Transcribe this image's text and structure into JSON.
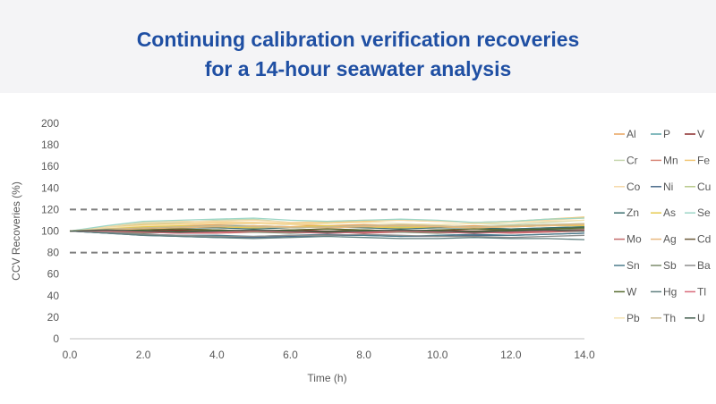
{
  "title_line1": "Continuing calibration verification recoveries",
  "title_line2": "for a 14-hour seawater analysis",
  "chart_data": {
    "type": "line",
    "title": "Continuing calibration verification recoveries for a 14-hour seawater analysis",
    "xlabel": "Time (h)",
    "ylabel": "CCV Recoveries (%)",
    "xlim": [
      0,
      14
    ],
    "ylim": [
      0,
      200
    ],
    "xticks": [
      "0.0",
      "2.0",
      "4.0",
      "6.0",
      "8.0",
      "10.0",
      "12.0",
      "14.0"
    ],
    "yticks": [
      "0",
      "20",
      "40",
      "60",
      "80",
      "100",
      "120",
      "140",
      "160",
      "180",
      "200"
    ],
    "grid": false,
    "legend_position": "right",
    "x": [
      0,
      1,
      2,
      3,
      4,
      5,
      6,
      7,
      8,
      9,
      10,
      11,
      12,
      13,
      14
    ],
    "reference_lines": [
      {
        "y": 120,
        "style": "dashed",
        "color": "#808080"
      },
      {
        "y": 80,
        "style": "dashed",
        "color": "#808080"
      }
    ],
    "series": [
      {
        "name": "Al",
        "color": "#e8a35e",
        "values": [
          100,
          102,
          104,
          105,
          106,
          107,
          106,
          105,
          106,
          105,
          104,
          105,
          104,
          105,
          106
        ]
      },
      {
        "name": "P",
        "color": "#5ba3a8",
        "values": [
          100,
          101,
          103,
          104,
          105,
          105,
          104,
          104,
          105,
          104,
          103,
          103,
          102,
          103,
          104
        ]
      },
      {
        "name": "V",
        "color": "#8b2b2b",
        "values": [
          100,
          99,
          100,
          101,
          100,
          100,
          101,
          100,
          99,
          100,
          101,
          100,
          99,
          100,
          101
        ]
      },
      {
        "name": "Cr",
        "color": "#c8d8b0",
        "values": [
          100,
          104,
          107,
          108,
          110,
          111,
          108,
          107,
          108,
          107,
          106,
          107,
          106,
          108,
          110
        ]
      },
      {
        "name": "Mn",
        "color": "#d9897a",
        "values": [
          100,
          102,
          103,
          102,
          101,
          100,
          101,
          102,
          101,
          100,
          99,
          100,
          101,
          102,
          103
        ]
      },
      {
        "name": "Fe",
        "color": "#f2c879",
        "values": [
          100,
          103,
          106,
          107,
          108,
          108,
          107,
          108,
          109,
          110,
          109,
          108,
          109,
          111,
          113
        ]
      },
      {
        "name": "Co",
        "color": "#f5d9a8",
        "values": [
          100,
          104,
          108,
          109,
          109,
          110,
          108,
          109,
          110,
          110,
          109,
          108,
          109,
          110,
          112
        ]
      },
      {
        "name": "Ni",
        "color": "#4a6b8a",
        "values": [
          100,
          98,
          96,
          95,
          94,
          94,
          95,
          96,
          96,
          95,
          95,
          96,
          96,
          97,
          98
        ]
      },
      {
        "name": "Cu",
        "color": "#b9c98a",
        "values": [
          100,
          103,
          104,
          104,
          105,
          104,
          103,
          104,
          105,
          104,
          103,
          104,
          105,
          106,
          107
        ]
      },
      {
        "name": "Zn",
        "color": "#3b6e6e",
        "values": [
          100,
          101,
          102,
          103,
          103,
          102,
          103,
          104,
          103,
          102,
          103,
          103,
          102,
          103,
          104
        ]
      },
      {
        "name": "As",
        "color": "#e6c94f",
        "values": [
          100,
          102,
          104,
          105,
          104,
          103,
          104,
          105,
          104,
          103,
          104,
          103,
          104,
          105,
          105
        ]
      },
      {
        "name": "Se",
        "color": "#9dd6c7",
        "values": [
          100,
          105,
          109,
          110,
          111,
          112,
          110,
          109,
          110,
          111,
          110,
          108,
          109,
          111,
          112
        ]
      },
      {
        "name": "Mo",
        "color": "#c46a6a",
        "values": [
          100,
          100,
          99,
          98,
          98,
          99,
          100,
          99,
          98,
          99,
          100,
          99,
          98,
          99,
          100
        ]
      },
      {
        "name": "Ag",
        "color": "#e9b87d",
        "values": [
          100,
          101,
          102,
          103,
          104,
          105,
          104,
          103,
          104,
          105,
          104,
          103,
          104,
          105,
          106
        ]
      },
      {
        "name": "Cd",
        "color": "#6b5a3a",
        "values": [
          100,
          99,
          99,
          100,
          101,
          100,
          99,
          100,
          101,
          100,
          99,
          100,
          101,
          100,
          101
        ]
      },
      {
        "name": "Sn",
        "color": "#4a7a8a",
        "values": [
          100,
          98,
          97,
          96,
          96,
          95,
          96,
          97,
          96,
          95,
          96,
          97,
          96,
          97,
          98
        ]
      },
      {
        "name": "Sb",
        "color": "#7a8a6a",
        "values": [
          100,
          99,
          98,
          99,
          100,
          99,
          98,
          99,
          100,
          99,
          98,
          99,
          100,
          101,
          102
        ]
      },
      {
        "name": "Ba",
        "color": "#8c8c8c",
        "values": [
          100,
          99,
          97,
          96,
          95,
          95,
          96,
          96,
          97,
          96,
          95,
          95,
          94,
          95,
          96
        ]
      },
      {
        "name": "W",
        "color": "#556b2f",
        "values": [
          100,
          100,
          101,
          102,
          101,
          100,
          101,
          102,
          101,
          100,
          101,
          102,
          101,
          102,
          103
        ]
      },
      {
        "name": "Hg",
        "color": "#5f7f7f",
        "values": [
          100,
          98,
          96,
          95,
          94,
          93,
          94,
          95,
          94,
          93,
          93,
          94,
          93,
          93,
          92
        ]
      },
      {
        "name": "Tl",
        "color": "#d86a7a",
        "values": [
          100,
          100,
          99,
          98,
          99,
          100,
          99,
          98,
          99,
          100,
          99,
          98,
          99,
          100,
          101
        ]
      },
      {
        "name": "Pb",
        "color": "#f5e3b0",
        "values": [
          100,
          103,
          105,
          106,
          107,
          107,
          106,
          107,
          108,
          107,
          106,
          107,
          108,
          109,
          110
        ]
      },
      {
        "name": "Th",
        "color": "#c9b98f",
        "values": [
          100,
          102,
          103,
          104,
          105,
          104,
          103,
          104,
          105,
          106,
          105,
          104,
          105,
          106,
          107
        ]
      },
      {
        "name": "U",
        "color": "#3f5a4a",
        "values": [
          100,
          101,
          100,
          99,
          100,
          101,
          100,
          99,
          100,
          101,
          100,
          99,
          100,
          101,
          100
        ]
      }
    ]
  }
}
